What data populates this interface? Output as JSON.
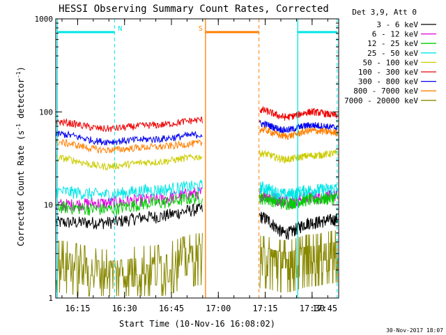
{
  "chart_data": {
    "type": "line",
    "title": "HESSI Observing Summary Count Rates, Corrected",
    "xlabel": "Start Time (10-Nov-16 16:08:02)",
    "ylabel_main": "Corrected Count Rate (s",
    "ylabel_sup1": "-1",
    "ylabel_mid": " detector",
    "ylabel_sup2": "-1",
    "ylabel_end": ")",
    "y_scale": "log",
    "ylim": [
      1,
      1000
    ],
    "y_ticks": [
      {
        "value": 1,
        "label": "1"
      },
      {
        "value": 10,
        "label": "10"
      },
      {
        "value": 100,
        "label": "100"
      },
      {
        "value": 1000,
        "label": "1000"
      }
    ],
    "xlim_minutes": [
      8.0,
      98.5
    ],
    "x_ticks": [
      {
        "minute": 15,
        "label": "16:15"
      },
      {
        "minute": 30,
        "label": "16:30"
      },
      {
        "minute": 45,
        "label": "16:45"
      },
      {
        "minute": 60,
        "label": "17:00"
      },
      {
        "minute": 75,
        "label": "17:15"
      },
      {
        "minute": 90,
        "label": "17:30"
      },
      {
        "minute": 105,
        "label": "17:45"
      }
    ],
    "legend_header": "Det 3,9, Att 0",
    "legend_position": "outside-right",
    "date_stamp": "30-Nov-2017 18:07",
    "gaps": [
      {
        "start": 54.9,
        "end": 73.2
      }
    ],
    "series": [
      {
        "name": "3 - 6 keV",
        "color": "#000000",
        "segments": [
          [
            6.5,
            6.5,
            7.5,
            9.0
          ],
          [
            7.5,
            5.0,
            6.5,
            7.0
          ]
        ]
      },
      {
        "name": "6 - 12 keV",
        "color": "#dd00dd",
        "segments": [
          [
            10.0,
            10.5,
            11.5,
            13.5
          ],
          [
            13.0,
            11.0,
            12.0,
            12.5
          ]
        ]
      },
      {
        "name": "12 - 25 keV",
        "color": "#00cc00",
        "segments": [
          [
            9.5,
            9.0,
            10.5,
            12.0
          ],
          [
            12.0,
            10.5,
            11.5,
            12.0
          ]
        ]
      },
      {
        "name": "25 - 50 keV",
        "color": "#00e5e5",
        "segments": [
          [
            14.0,
            13.0,
            14.5,
            16.0
          ],
          [
            15.5,
            13.0,
            14.5,
            15.0
          ]
        ]
      },
      {
        "name": "50 - 100 keV",
        "color": "#cccc00",
        "segments": [
          [
            32,
            26,
            29,
            33
          ],
          [
            36,
            31,
            34,
            36
          ]
        ]
      },
      {
        "name": "100 - 300 keV",
        "color": "#ee0000",
        "segments": [
          [
            78,
            66,
            72,
            82
          ],
          [
            105,
            88,
            100,
            92
          ]
        ]
      },
      {
        "name": "300 - 800 keV",
        "color": "#0000ee",
        "segments": [
          [
            58,
            48,
            51,
            57
          ],
          [
            75,
            64,
            72,
            68
          ]
        ]
      },
      {
        "name": "800 - 7000 keV",
        "color": "#ff7f00",
        "segments": [
          [
            47,
            39,
            42,
            46
          ],
          [
            65,
            55,
            63,
            60
          ]
        ]
      },
      {
        "name": "7000 - 20000 keV",
        "color": "#888800",
        "segments": [
          [
            2.5,
            2.0,
            2.2,
            3.0
          ],
          [
            2.8,
            2.5,
            2.9,
            3.2
          ]
        ]
      }
    ],
    "annotations": [
      {
        "label": "N",
        "color": "#00e5e5",
        "bar_start": 8.5,
        "bar_end": 26.8,
        "line_x": 26.8
      },
      {
        "label": "S",
        "color": "#ff7f00",
        "bar_start": 55.9,
        "bar_end": 73.0,
        "line_x": 73.0
      },
      {
        "label": "",
        "color": "#00e5e5",
        "bar_start": 85.4,
        "bar_end": 98.0,
        "line_x": 98.0
      }
    ],
    "solid_lines": [
      {
        "minute": 8.5,
        "color": "#00e5e5"
      },
      {
        "minute": 55.9,
        "color": "#ff7f00"
      },
      {
        "minute": 85.4,
        "color": "#00e5e5"
      }
    ]
  }
}
